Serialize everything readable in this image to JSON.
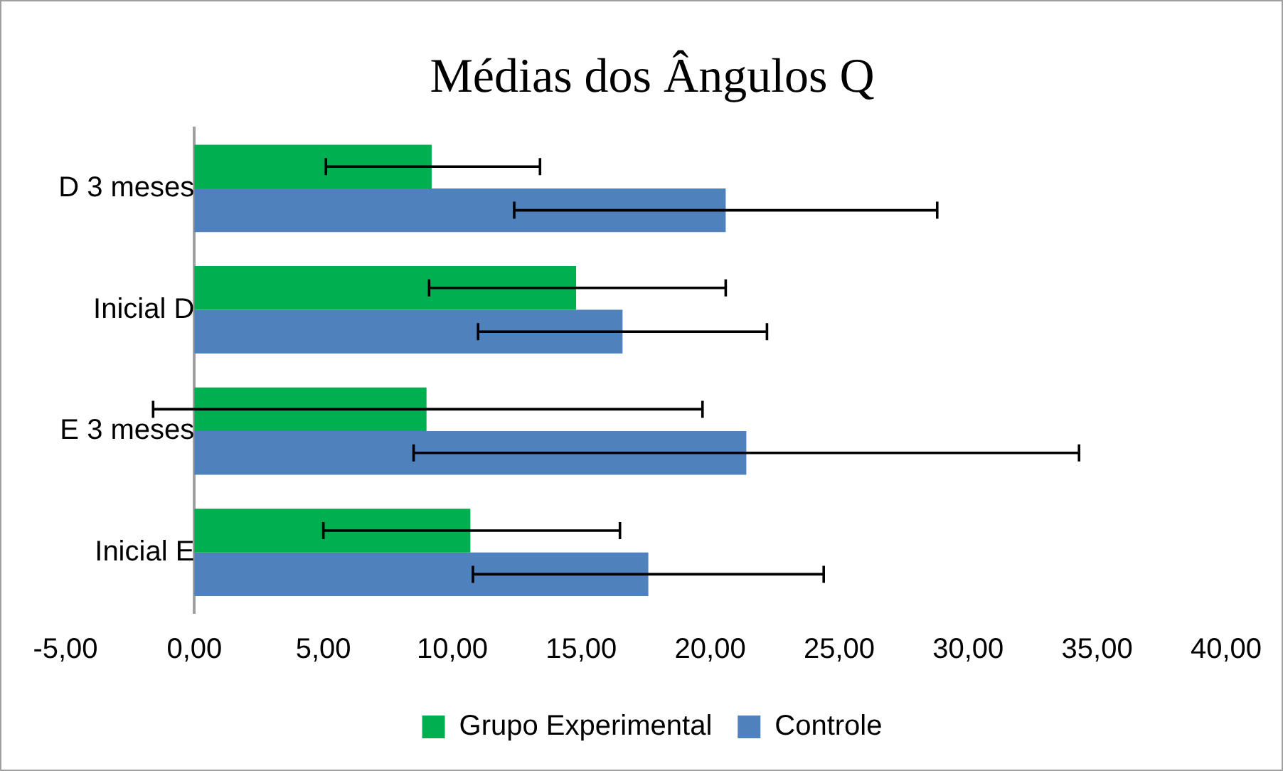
{
  "chart_data": {
    "type": "bar",
    "orientation": "horizontal",
    "title": "Médias dos Ângulos Q",
    "categories": [
      "D 3 meses",
      "Inicial D",
      "E 3 meses",
      "Inicial E"
    ],
    "series": [
      {
        "name": "Grupo Experimental",
        "color": "#00b050",
        "values": [
          9.2,
          14.8,
          9.0,
          10.7
        ],
        "errors": [
          [
            5.1,
            13.4
          ],
          [
            9.1,
            20.6
          ],
          [
            -1.6,
            19.7
          ],
          [
            5.0,
            16.5
          ]
        ]
      },
      {
        "name": "Controle",
        "color": "#4f81bd",
        "values": [
          20.6,
          16.6,
          21.4,
          17.6
        ],
        "errors": [
          [
            12.4,
            28.8
          ],
          [
            11.0,
            22.2
          ],
          [
            8.5,
            34.3
          ],
          [
            10.8,
            24.4
          ]
        ]
      }
    ],
    "xlim": [
      -5,
      40
    ],
    "xticks": [
      {
        "value": -5,
        "label": "-5,00"
      },
      {
        "value": 0,
        "label": "0,00"
      },
      {
        "value": 5,
        "label": "5,00"
      },
      {
        "value": 10,
        "label": "10,00"
      },
      {
        "value": 15,
        "label": "15,00"
      },
      {
        "value": 20,
        "label": "20,00"
      },
      {
        "value": 25,
        "label": "25,00"
      },
      {
        "value": 30,
        "label": "30,00"
      },
      {
        "value": 35,
        "label": "35,00"
      },
      {
        "value": 40,
        "label": "40,00"
      }
    ],
    "grid": false,
    "legend": "bottom"
  }
}
